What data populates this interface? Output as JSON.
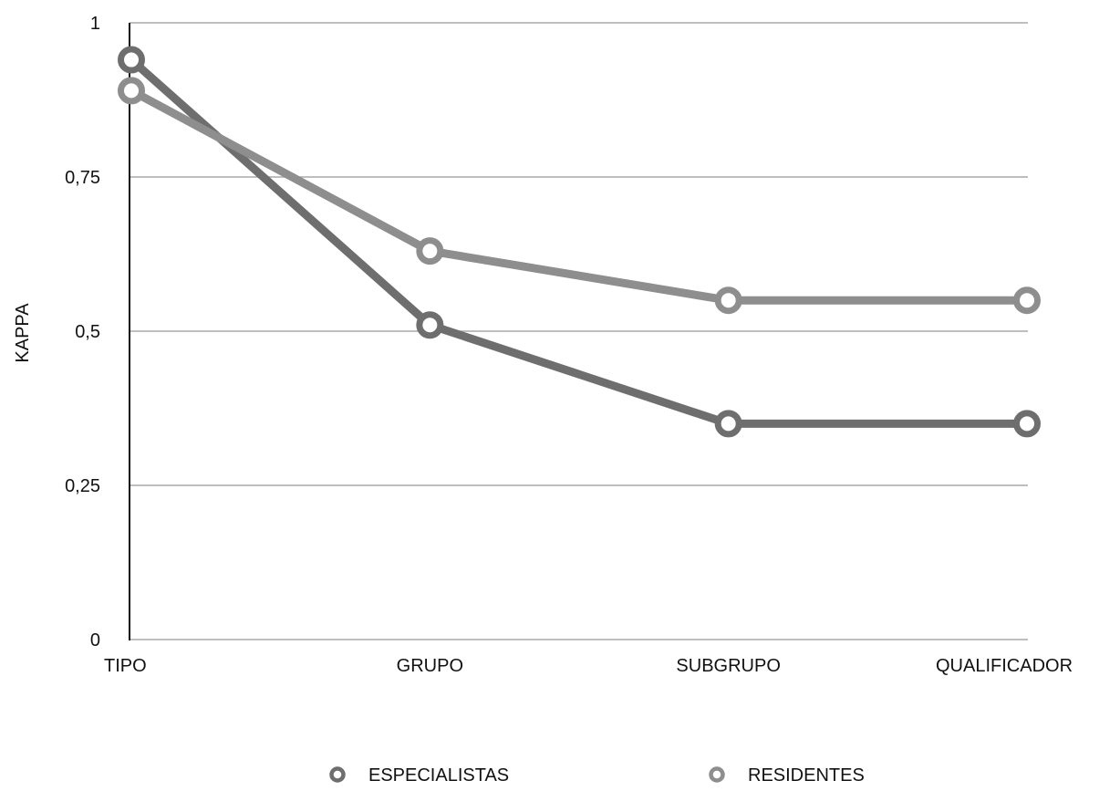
{
  "chart_data": {
    "type": "line",
    "title": "",
    "xlabel": "",
    "ylabel": "KAPPA",
    "categories": [
      "TIPO",
      "GRUPO",
      "SUBGRUPO",
      "QUALIFICADOR"
    ],
    "ylim": [
      0,
      1
    ],
    "yticks": [
      0,
      0.25,
      0.5,
      0.75,
      1
    ],
    "ytick_labels": [
      "0",
      "0,25",
      "0,5",
      "0,75",
      "1"
    ],
    "grid": true,
    "legend_position": "bottom",
    "series": [
      {
        "name": "ESPECIALISTAS",
        "values": [
          0.94,
          0.51,
          0.35,
          0.35
        ],
        "color": "#6e6e6e"
      },
      {
        "name": "RESIDENTES",
        "values": [
          0.89,
          0.63,
          0.55,
          0.55
        ],
        "color": "#8e8e8e"
      }
    ]
  }
}
